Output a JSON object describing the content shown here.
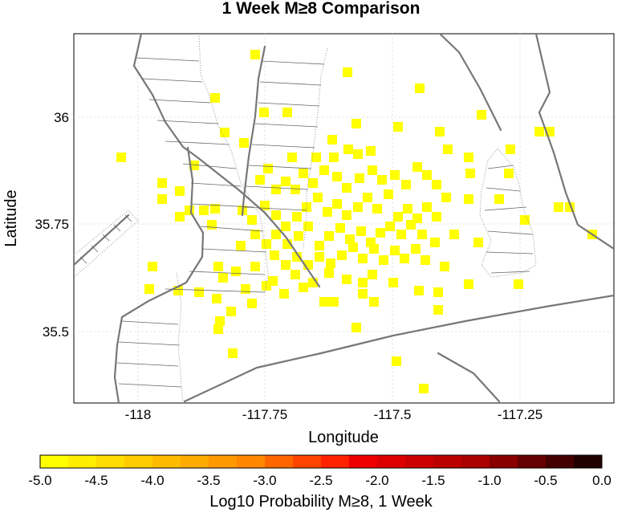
{
  "title": "1 Week M≥8 Comparison",
  "map": {
    "xlabel": "Longitude",
    "ylabel": "Latitude",
    "x_ticks": [
      "-118",
      "-117.75",
      "-117.5",
      "-117.25"
    ],
    "y_ticks": [
      "36",
      "35.75",
      "35.5"
    ],
    "cell_color": "#ffff00",
    "fault_color": "#777777"
  },
  "colorbar": {
    "label": "Log10 Probability M≥8, 1 Week",
    "ticks": [
      "-5.0",
      "-4.5",
      "-4.0",
      "-3.5",
      "-3.0",
      "-2.5",
      "-2.0",
      "-1.5",
      "-1.0",
      "-0.5",
      "0.0"
    ],
    "colors": [
      "#ffff00",
      "#ffee00",
      "#ffdd00",
      "#ffcc00",
      "#ffbb00",
      "#ffaa00",
      "#ff9900",
      "#ff8800",
      "#ff6600",
      "#ff4400",
      "#ff2200",
      "#ee0000",
      "#dd0000",
      "#cc0000",
      "#bb0000",
      "#aa0000",
      "#880000",
      "#660000",
      "#440000",
      "#220000"
    ]
  }
}
